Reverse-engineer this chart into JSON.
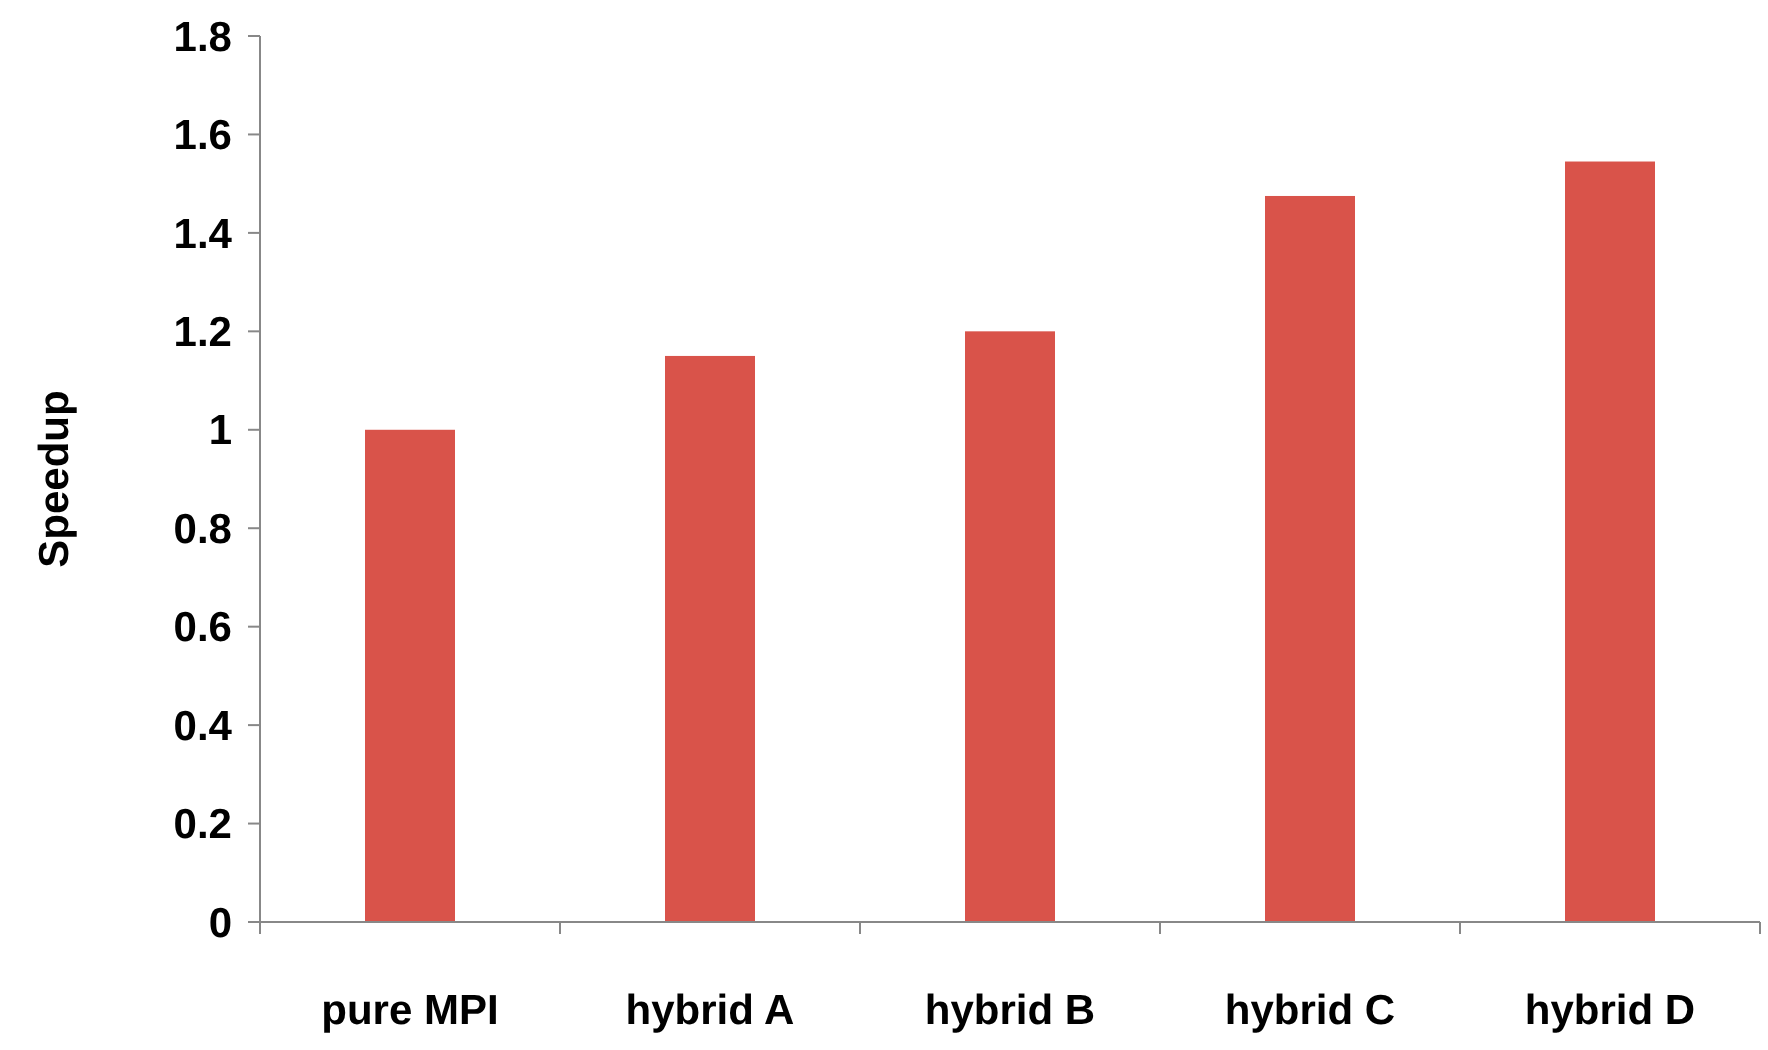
{
  "chart_data": {
    "type": "bar",
    "ylabel": "Speedup",
    "categories": [
      "pure MPI",
      "hybrid A",
      "hybrid B",
      "hybrid C",
      "hybrid D"
    ],
    "values": [
      1.0,
      1.15,
      1.2,
      1.475,
      1.545
    ],
    "color": "#d9534a",
    "ylim": [
      0,
      1.8
    ],
    "yticks": [
      0,
      0.2,
      0.4,
      0.6,
      0.8,
      1,
      1.2,
      1.4,
      1.6,
      1.8
    ]
  }
}
